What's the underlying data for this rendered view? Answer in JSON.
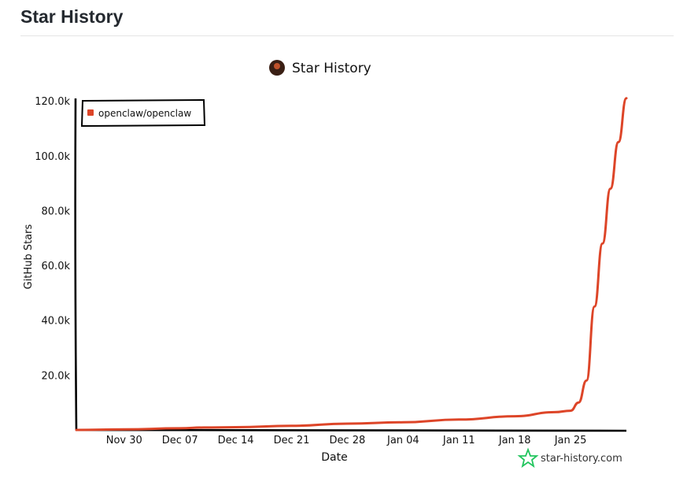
{
  "page": {
    "title": "Star History"
  },
  "chart_data": {
    "type": "line",
    "title": "Star History",
    "xlabel": "Date",
    "ylabel": "GitHub Stars",
    "legend": {
      "position": "top-left",
      "entries": [
        "openclaw/openclaw"
      ]
    },
    "series": [
      {
        "name": "openclaw/openclaw",
        "color": "#dd4528",
        "points": [
          [
            "2025-11-24",
            0
          ],
          [
            "2025-11-30",
            200
          ],
          [
            "2025-12-07",
            600
          ],
          [
            "2025-12-10",
            900
          ],
          [
            "2025-12-14",
            1000
          ],
          [
            "2025-12-21",
            1500
          ],
          [
            "2025-12-28",
            2300
          ],
          [
            "2026-01-04",
            2800
          ],
          [
            "2026-01-11",
            3800
          ],
          [
            "2026-01-18",
            5000
          ],
          [
            "2026-01-23",
            6500
          ],
          [
            "2026-01-25",
            7000
          ],
          [
            "2026-01-26",
            10000
          ],
          [
            "2026-01-27",
            18000
          ],
          [
            "2026-01-28",
            45000
          ],
          [
            "2026-01-29",
            68000
          ],
          [
            "2026-01-30",
            88000
          ],
          [
            "2026-01-31",
            105000
          ],
          [
            "2026-02-01",
            121000
          ]
        ]
      }
    ],
    "x_ticks": [
      "Nov 30",
      "Dec 07",
      "Dec 14",
      "Dec 21",
      "Dec 28",
      "Jan 04",
      "Jan 11",
      "Jan 18",
      "Jan 25"
    ],
    "x_tick_dates": [
      "2025-11-30",
      "2025-12-07",
      "2025-12-14",
      "2025-12-21",
      "2025-12-28",
      "2026-01-04",
      "2026-01-11",
      "2026-01-18",
      "2026-01-25"
    ],
    "y_ticks": [
      20000,
      40000,
      60000,
      80000,
      100000,
      120000
    ],
    "y_tick_labels": [
      "20.0k",
      "40.0k",
      "60.0k",
      "80.0k",
      "100.0k",
      "120.0k"
    ],
    "xlim": [
      "2025-11-24",
      "2026-02-01"
    ],
    "ylim": [
      0,
      121500
    ],
    "grid": false,
    "watermark": "star-history.com"
  }
}
